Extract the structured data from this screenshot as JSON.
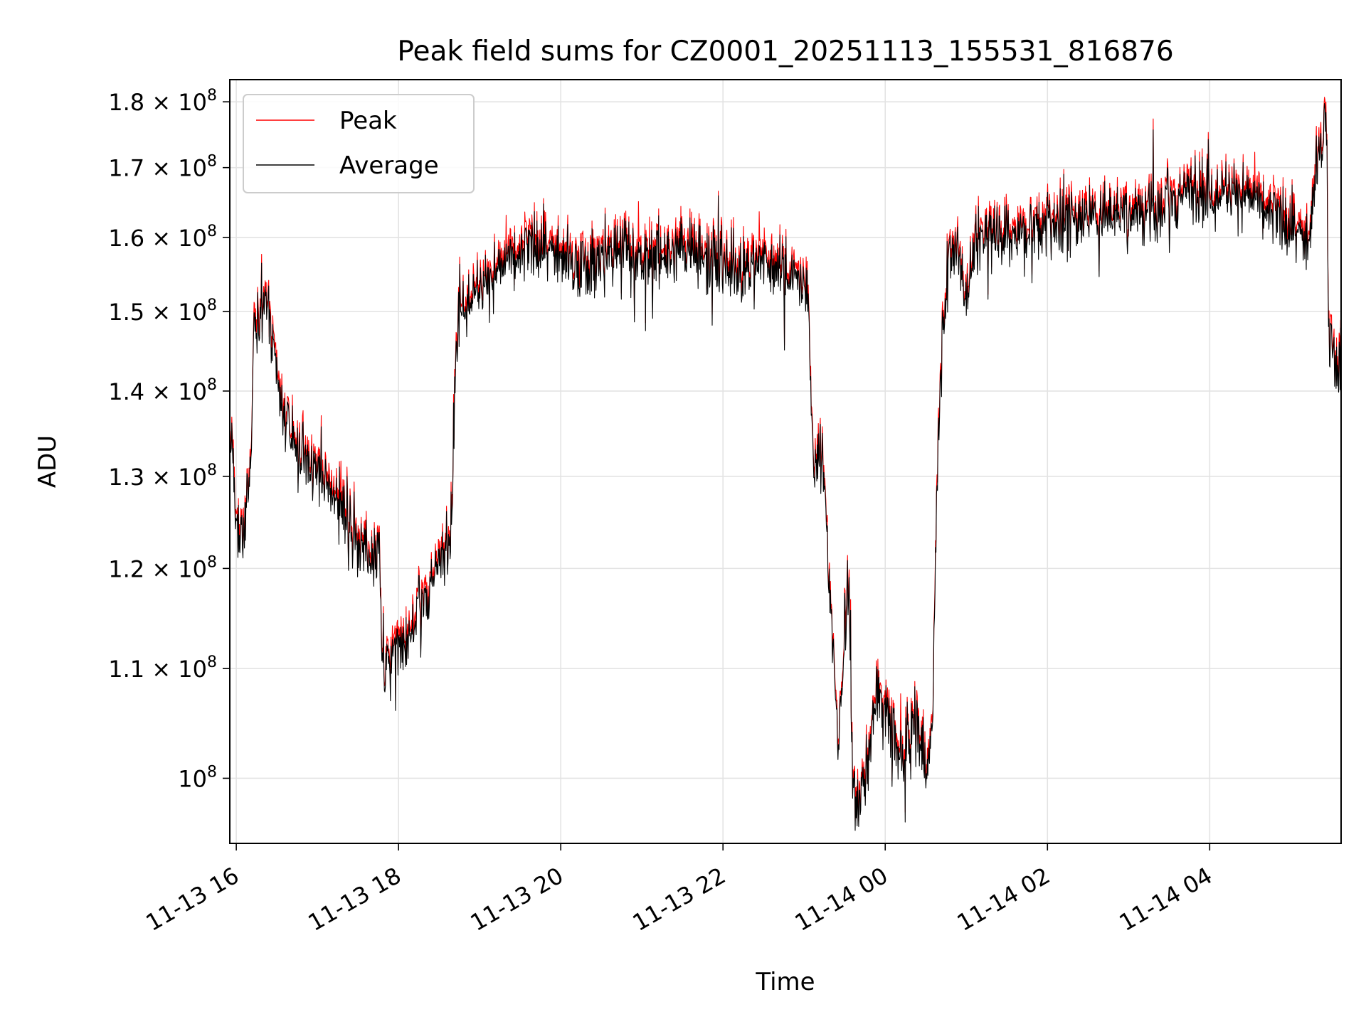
{
  "chart_data": {
    "type": "line",
    "title": "Peak field sums for CZ0001_20251113_155531_816876",
    "xlabel": "Time",
    "ylabel": "ADU",
    "yscale": "log",
    "grid": true,
    "legend_position": "upper-left",
    "colors": {
      "Peak": "#ff0000",
      "Average": "#000000",
      "grid": "#e3e3e3"
    },
    "xlim_hours": [
      15.92,
      29.62
    ],
    "ylim": [
      94500000,
      183500000
    ],
    "x_ticks": [
      {
        "hour": 16,
        "label": "11-13 16"
      },
      {
        "hour": 18,
        "label": "11-13 18"
      },
      {
        "hour": 20,
        "label": "11-13 20"
      },
      {
        "hour": 22,
        "label": "11-13 22"
      },
      {
        "hour": 24,
        "label": "11-14 00"
      },
      {
        "hour": 26,
        "label": "11-14 02"
      },
      {
        "hour": 28,
        "label": "11-14 04"
      }
    ],
    "y_ticks": [
      {
        "value": 100000000,
        "mantissa": "",
        "label": "10"
      },
      {
        "value": 110000000,
        "mantissa": "1.1",
        "label": "10"
      },
      {
        "value": 120000000,
        "mantissa": "1.2",
        "label": "10"
      },
      {
        "value": 130000000,
        "mantissa": "1.3",
        "label": "10"
      },
      {
        "value": 140000000,
        "mantissa": "1.4",
        "label": "10"
      },
      {
        "value": 150000000,
        "mantissa": "1.5",
        "label": "10"
      },
      {
        "value": 160000000,
        "mantissa": "1.6",
        "label": "10"
      },
      {
        "value": 170000000,
        "mantissa": "1.7",
        "label": "10"
      },
      {
        "value": 180000000,
        "mantissa": "1.8",
        "label": "10"
      }
    ],
    "y_tick_exponent": "8",
    "times_symbol": "×",
    "series": [
      {
        "name": "Peak",
        "color": "#ff0000"
      },
      {
        "name": "Average",
        "color": "#000000"
      }
    ],
    "trend": [
      [
        15.92,
        132.5
      ],
      [
        15.95,
        134.0
      ],
      [
        16.0,
        122.5
      ],
      [
        16.08,
        124.0
      ],
      [
        16.13,
        128.5
      ],
      [
        16.18,
        131.0
      ],
      [
        16.22,
        150.5
      ],
      [
        16.28,
        149.5
      ],
      [
        16.36,
        151.5
      ],
      [
        16.42,
        147.0
      ],
      [
        16.5,
        141.0
      ],
      [
        16.6,
        136.5
      ],
      [
        16.75,
        133.0
      ],
      [
        16.9,
        131.5
      ],
      [
        17.05,
        130.0
      ],
      [
        17.2,
        128.0
      ],
      [
        17.35,
        126.0
      ],
      [
        17.5,
        123.0
      ],
      [
        17.65,
        121.5
      ],
      [
        17.76,
        121.5
      ],
      [
        17.8,
        111.0
      ],
      [
        17.88,
        110.0
      ],
      [
        18.0,
        112.5
      ],
      [
        18.1,
        114.0
      ],
      [
        18.2,
        115.0
      ],
      [
        18.3,
        116.5
      ],
      [
        18.4,
        118.5
      ],
      [
        18.5,
        120.0
      ],
      [
        18.6,
        122.5
      ],
      [
        18.66,
        126.0
      ],
      [
        18.7,
        145.0
      ],
      [
        18.78,
        152.0
      ],
      [
        18.9,
        152.0
      ],
      [
        19.0,
        153.5
      ],
      [
        19.2,
        155.5
      ],
      [
        19.4,
        157.5
      ],
      [
        19.6,
        158.5
      ],
      [
        19.8,
        158.5
      ],
      [
        20.0,
        157.0
      ],
      [
        20.2,
        156.0
      ],
      [
        20.4,
        156.5
      ],
      [
        20.6,
        157.5
      ],
      [
        20.8,
        158.0
      ],
      [
        21.0,
        157.0
      ],
      [
        21.2,
        157.5
      ],
      [
        21.4,
        158.0
      ],
      [
        21.6,
        158.5
      ],
      [
        21.8,
        157.5
      ],
      [
        22.0,
        156.0
      ],
      [
        22.2,
        156.0
      ],
      [
        22.4,
        155.5
      ],
      [
        22.6,
        156.0
      ],
      [
        22.8,
        155.0
      ],
      [
        22.95,
        154.0
      ],
      [
        23.05,
        152.0
      ],
      [
        23.12,
        131.0
      ],
      [
        23.22,
        133.0
      ],
      [
        23.32,
        118.0
      ],
      [
        23.42,
        102.0
      ],
      [
        23.48,
        112.0
      ],
      [
        23.55,
        119.0
      ],
      [
        23.6,
        98.0
      ],
      [
        23.7,
        98.5
      ],
      [
        23.8,
        102.0
      ],
      [
        23.9,
        108.0
      ],
      [
        23.95,
        107.0
      ],
      [
        24.05,
        105.0
      ],
      [
        24.15,
        102.5
      ],
      [
        24.22,
        101.5
      ],
      [
        24.3,
        104.0
      ],
      [
        24.4,
        104.5
      ],
      [
        24.5,
        101.0
      ],
      [
        24.58,
        103.5
      ],
      [
        24.62,
        122.0
      ],
      [
        24.68,
        142.0
      ],
      [
        24.78,
        157.5
      ],
      [
        24.9,
        159.0
      ],
      [
        25.0,
        152.0
      ],
      [
        25.1,
        158.0
      ],
      [
        25.3,
        161.5
      ],
      [
        25.5,
        160.5
      ],
      [
        25.7,
        161.0
      ],
      [
        25.9,
        162.0
      ],
      [
        26.1,
        162.0
      ],
      [
        26.3,
        162.5
      ],
      [
        26.5,
        162.5
      ],
      [
        26.7,
        163.0
      ],
      [
        26.9,
        163.5
      ],
      [
        27.1,
        164.0
      ],
      [
        27.3,
        164.5
      ],
      [
        27.5,
        165.0
      ],
      [
        27.7,
        166.0
      ],
      [
        27.9,
        167.0
      ],
      [
        28.1,
        166.5
      ],
      [
        28.3,
        167.0
      ],
      [
        28.5,
        166.0
      ],
      [
        28.7,
        164.5
      ],
      [
        28.9,
        162.0
      ],
      [
        29.1,
        160.5
      ],
      [
        29.22,
        158.5
      ],
      [
        29.3,
        168.0
      ],
      [
        29.38,
        174.0
      ],
      [
        29.44,
        178.0
      ],
      [
        29.47,
        146.0
      ],
      [
        29.55,
        144.0
      ],
      [
        29.62,
        143.5
      ]
    ],
    "noise_amplitude_pct": 1.8
  }
}
